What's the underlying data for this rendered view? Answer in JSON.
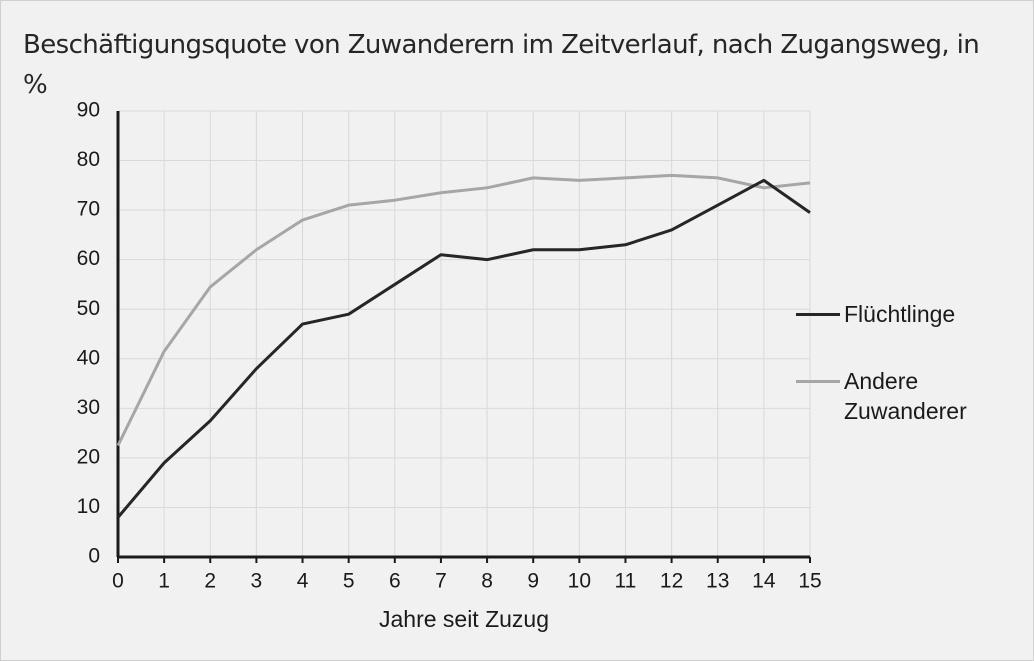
{
  "chart_data": {
    "type": "line",
    "title": "Beschäftigungsquote von Zuwanderern im Zeitverlauf, nach Zugangsweg, in %",
    "x_label": "Jahre seit Zuzug",
    "x": [
      0,
      1,
      2,
      3,
      4,
      5,
      6,
      7,
      8,
      9,
      10,
      11,
      12,
      13,
      14,
      15
    ],
    "series": [
      {
        "name": "Flüchtlinge",
        "color": "#262626",
        "values": [
          8,
          19,
          27.5,
          38,
          47,
          49,
          55,
          61,
          60,
          62,
          62,
          63,
          66,
          71,
          76,
          69.5
        ]
      },
      {
        "name": "Andere Zuwanderer",
        "color": "#a6a6a6",
        "values": [
          22.5,
          41.5,
          54.5,
          62,
          68,
          71,
          72,
          73.5,
          74.5,
          76.5,
          76,
          76.5,
          77,
          76.5,
          74.5,
          75.5
        ]
      }
    ],
    "xlim": [
      0,
      15
    ],
    "xticks": [
      0,
      1,
      2,
      3,
      4,
      5,
      6,
      7,
      8,
      9,
      10,
      11,
      12,
      13,
      14,
      15
    ],
    "ylim": [
      0,
      90
    ],
    "yticks": [
      0,
      10,
      20,
      30,
      40,
      50,
      60,
      70,
      80,
      90
    ],
    "grid": true,
    "legend": "right"
  }
}
